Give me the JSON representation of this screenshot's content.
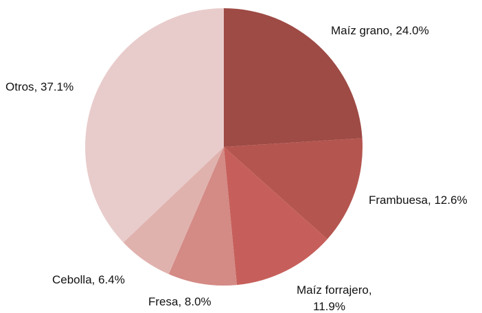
{
  "chart_data": {
    "type": "pie",
    "categories": [
      "Maíz grano",
      "Frambuesa",
      "Maíz forrajero",
      "Fresa",
      "Cebolla",
      "Otros"
    ],
    "values": [
      24.0,
      12.6,
      11.9,
      8.0,
      6.4,
      37.1
    ],
    "value_labels": [
      "24.0%",
      "12.6%",
      "11.9%",
      "8.0%",
      "6.4%",
      "37.1%"
    ],
    "colors": [
      "#9e4a45",
      "#b5554f",
      "#c65f5b",
      "#d48a85",
      "#e0b2ae",
      "#e8cccb"
    ]
  }
}
